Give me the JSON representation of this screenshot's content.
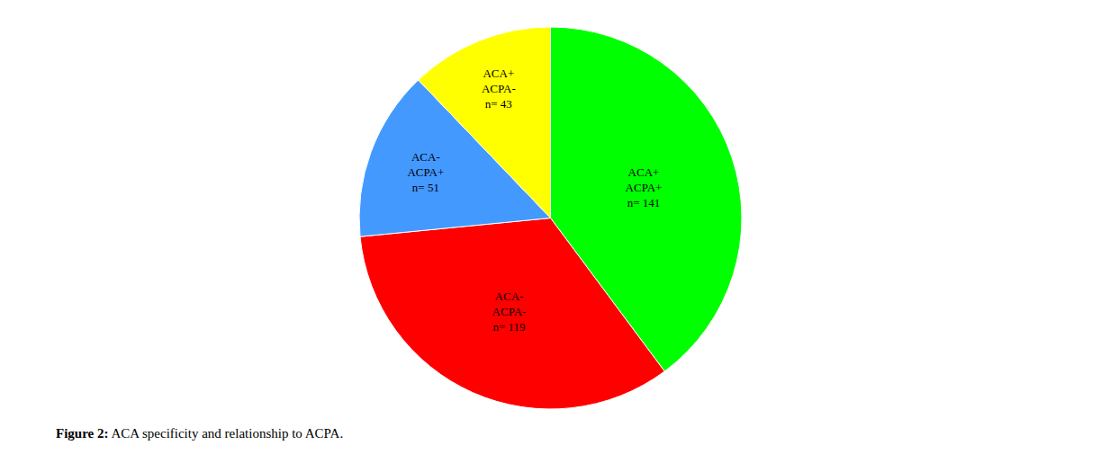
{
  "chart_data": {
    "type": "pie",
    "categories": [
      "ACA+\nACPA+\nn= 141",
      "ACA-\nACPA-\nn= 119",
      "ACA-\nACPA+\nn= 51",
      "ACA+\nACPA-\nn= 43"
    ],
    "values": [
      141,
      119,
      51,
      43
    ],
    "colors": [
      "#00ff00",
      "#ff0000",
      "#4499ff",
      "#ffff00"
    ],
    "annotations": [
      "Figure 2: ACA specificity and relationship to ACPA."
    ]
  }
}
